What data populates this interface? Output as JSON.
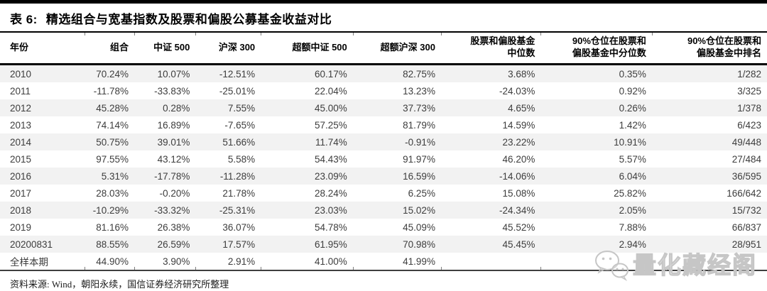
{
  "table": {
    "tag": "表 6:",
    "title": "精选组合与宽基指数及股票和偏股公募基金收益对比",
    "columns": [
      "年份",
      "组合",
      "中证 500",
      "沪深 300",
      "超额中证 500",
      "超额沪深 300",
      "股票和偏股基金\n中位数",
      "90%仓位在股票和\n偏股基金中分位数",
      "90%仓位在股票和\n偏股基金中排名"
    ],
    "rows": [
      [
        "2010",
        "70.24%",
        "10.07%",
        "-12.51%",
        "60.17%",
        "82.75%",
        "3.68%",
        "0.35%",
        "1/282"
      ],
      [
        "2011",
        "-11.78%",
        "-33.83%",
        "-25.01%",
        "22.04%",
        "13.23%",
        "-24.03%",
        "0.92%",
        "3/325"
      ],
      [
        "2012",
        "45.28%",
        "0.28%",
        "7.55%",
        "45.00%",
        "37.73%",
        "4.65%",
        "0.26%",
        "1/378"
      ],
      [
        "2013",
        "74.14%",
        "16.89%",
        "-7.65%",
        "57.25%",
        "81.79%",
        "14.59%",
        "1.42%",
        "6/423"
      ],
      [
        "2014",
        "50.75%",
        "39.01%",
        "51.66%",
        "11.74%",
        "-0.91%",
        "23.22%",
        "10.91%",
        "49/448"
      ],
      [
        "2015",
        "97.55%",
        "43.12%",
        "5.58%",
        "54.43%",
        "91.97%",
        "46.20%",
        "5.57%",
        "27/484"
      ],
      [
        "2016",
        "5.31%",
        "-17.78%",
        "-11.28%",
        "23.09%",
        "16.59%",
        "-14.06%",
        "6.04%",
        "36/595"
      ],
      [
        "2017",
        "28.03%",
        "-0.20%",
        "21.78%",
        "28.24%",
        "6.25%",
        "15.08%",
        "25.82%",
        "166/642"
      ],
      [
        "2018",
        "-10.29%",
        "-33.32%",
        "-25.31%",
        "23.03%",
        "15.02%",
        "-24.34%",
        "2.05%",
        "15/732"
      ],
      [
        "2019",
        "81.16%",
        "26.38%",
        "36.07%",
        "54.78%",
        "45.09%",
        "45.52%",
        "7.88%",
        "66/837"
      ],
      [
        "20200831",
        "88.55%",
        "26.59%",
        "17.57%",
        "61.95%",
        "70.98%",
        "45.45%",
        "2.94%",
        "28/951"
      ],
      [
        "全样本期",
        "44.90%",
        "3.90%",
        "2.91%",
        "41.00%",
        "41.99%",
        "",
        "",
        ""
      ]
    ],
    "source": "资料来源: Wind，朝阳永续，国信证券经济研究所整理"
  },
  "watermark": {
    "text": "量化藏经阁",
    "icon": "wechat-icon"
  },
  "colors": {
    "row_stripe": "#f2f2f2",
    "rule_black": "#000000",
    "body_text": "#3d3d3d",
    "watermark_gray": "#c6c6c6"
  }
}
